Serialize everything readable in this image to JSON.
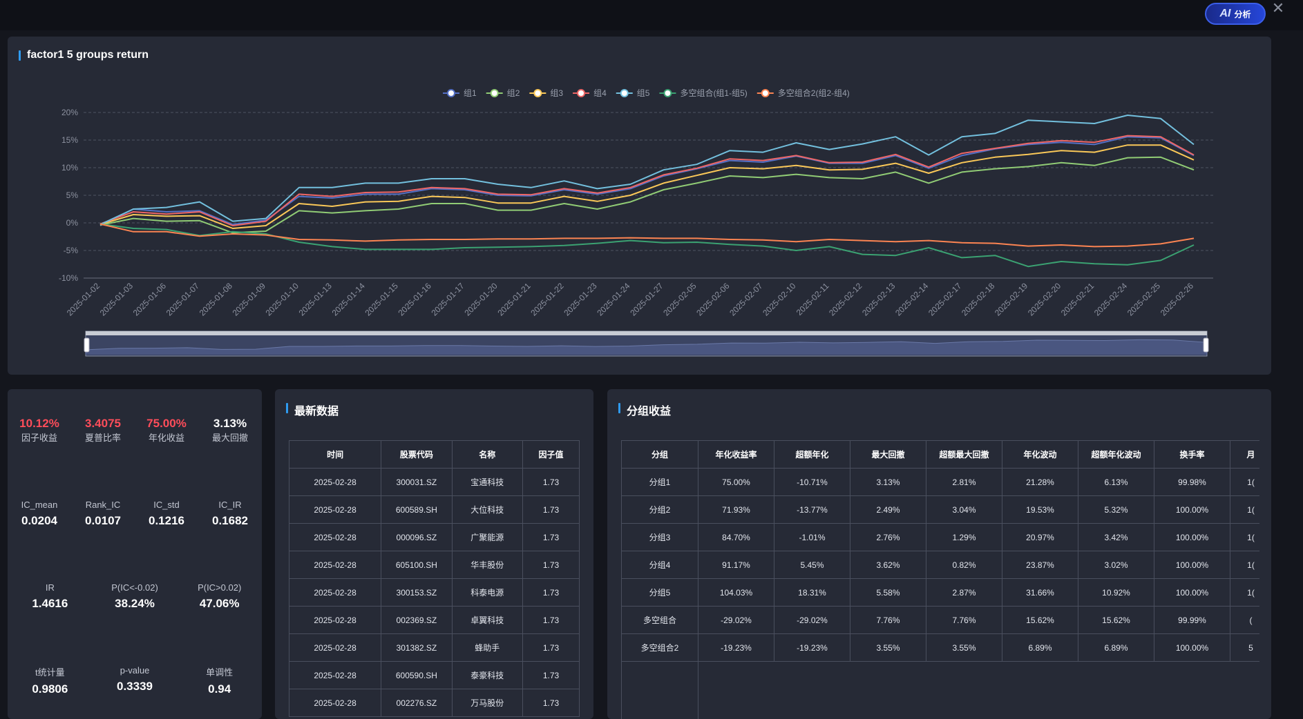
{
  "header": {
    "ai_label": "AI",
    "ai_sub": "分析",
    "close_glyph": "✕"
  },
  "chart": {
    "title": "factor1 5 groups return"
  },
  "chart_data": {
    "type": "line",
    "x": [
      "2025-01-02",
      "2025-01-03",
      "2025-01-06",
      "2025-01-07",
      "2025-01-08",
      "2025-01-09",
      "2025-01-10",
      "2025-01-13",
      "2025-01-14",
      "2025-01-15",
      "2025-01-16",
      "2025-01-17",
      "2025-01-20",
      "2025-01-21",
      "2025-01-22",
      "2025-01-23",
      "2025-01-24",
      "2025-01-27",
      "2025-02-05",
      "2025-02-06",
      "2025-02-07",
      "2025-02-10",
      "2025-02-11",
      "2025-02-12",
      "2025-02-13",
      "2025-02-14",
      "2025-02-17",
      "2025-02-18",
      "2025-02-19",
      "2025-02-20",
      "2025-02-21",
      "2025-02-24",
      "2025-02-25",
      "2025-02-26"
    ],
    "ylim": [
      -10,
      20
    ],
    "yticks": [
      "-10%",
      "-5%",
      "0%",
      "5%",
      "10%",
      "15%",
      "20%"
    ],
    "grid": true,
    "legend_position": "top",
    "series": [
      {
        "name": "组1",
        "color": "#5470c6",
        "values": [
          -0.5,
          2.5,
          2.0,
          2.2,
          -0.3,
          0.5,
          4.8,
          4.5,
          5.2,
          5.2,
          6.2,
          6.0,
          5.0,
          4.9,
          6.0,
          5.2,
          6.2,
          8.5,
          9.8,
          11.3,
          11.0,
          12.1,
          10.8,
          10.8,
          12.2,
          9.9,
          12.2,
          13.4,
          14.2,
          14.6,
          14.2,
          15.6,
          15.4,
          12.2
        ]
      },
      {
        "name": "组2",
        "color": "#91cc75",
        "values": [
          -0.4,
          0.8,
          0.3,
          0.4,
          -1.8,
          -1.5,
          2.2,
          1.8,
          2.2,
          2.5,
          3.5,
          3.5,
          2.3,
          2.3,
          3.5,
          2.5,
          3.8,
          6.0,
          7.2,
          8.5,
          8.2,
          8.8,
          8.2,
          8.0,
          9.2,
          7.2,
          9.2,
          9.8,
          10.2,
          10.9,
          10.4,
          11.8,
          11.9,
          9.6
        ]
      },
      {
        "name": "组3",
        "color": "#fac858",
        "values": [
          -0.3,
          1.5,
          1.2,
          1.3,
          -1.0,
          -0.5,
          3.5,
          3.0,
          3.8,
          3.9,
          4.8,
          4.6,
          3.6,
          3.6,
          4.8,
          3.9,
          5.0,
          7.2,
          8.6,
          10.0,
          9.8,
          10.4,
          9.6,
          9.7,
          10.8,
          9.0,
          10.9,
          11.9,
          12.4,
          13.1,
          12.8,
          14.1,
          14.1,
          11.4
        ]
      },
      {
        "name": "组4",
        "color": "#ee6666",
        "values": [
          -0.2,
          2.0,
          1.6,
          2.0,
          -0.5,
          0.3,
          5.2,
          4.8,
          5.5,
          5.6,
          6.4,
          6.2,
          5.2,
          5.1,
          6.2,
          5.4,
          6.4,
          8.7,
          9.9,
          11.6,
          11.3,
          12.2,
          10.9,
          11.0,
          12.4,
          10.1,
          12.6,
          13.5,
          14.4,
          14.9,
          14.6,
          15.8,
          15.6,
          12.3
        ]
      },
      {
        "name": "组5",
        "color": "#73c0de",
        "values": [
          -0.3,
          2.5,
          2.8,
          3.8,
          0.3,
          0.8,
          6.4,
          6.4,
          7.2,
          7.2,
          8.0,
          8.0,
          7.0,
          6.4,
          7.6,
          6.2,
          7.0,
          9.6,
          10.6,
          13.1,
          12.8,
          14.5,
          13.3,
          14.3,
          15.6,
          12.3,
          15.6,
          16.2,
          18.6,
          18.3,
          18.0,
          19.5,
          18.9,
          14.2
        ]
      },
      {
        "name": "多空组合(组1-组5)",
        "color": "#3ba272",
        "values": [
          -0.2,
          -1.0,
          -1.2,
          -2.3,
          -1.6,
          -2.0,
          -3.5,
          -4.3,
          -4.8,
          -4.8,
          -4.8,
          -4.5,
          -4.4,
          -4.3,
          -4.1,
          -3.7,
          -3.2,
          -3.6,
          -3.5,
          -3.9,
          -4.2,
          -5.0,
          -4.3,
          -5.7,
          -5.9,
          -4.5,
          -6.3,
          -5.9,
          -7.9,
          -7.0,
          -7.4,
          -7.6,
          -6.8,
          -4.0
        ]
      },
      {
        "name": "多空组合2(组2-组4)",
        "color": "#fc8452",
        "values": [
          -0.2,
          -1.6,
          -1.6,
          -2.4,
          -2.0,
          -2.2,
          -3.0,
          -3.1,
          -3.3,
          -3.1,
          -3.0,
          -3.0,
          -2.9,
          -2.9,
          -2.8,
          -2.8,
          -2.7,
          -2.8,
          -2.8,
          -3.0,
          -3.1,
          -3.4,
          -3.0,
          -3.2,
          -3.4,
          -3.2,
          -3.6,
          -3.7,
          -4.2,
          -4.0,
          -4.3,
          -4.2,
          -3.8,
          -2.8
        ]
      }
    ]
  },
  "stats": {
    "row1": [
      {
        "value": "10.12%",
        "label": "因子收益",
        "highlight": true
      },
      {
        "value": "3.4075",
        "label": "夏普比率",
        "highlight": true
      },
      {
        "value": "75.00%",
        "label": "年化收益",
        "highlight": true
      },
      {
        "value": "3.13%",
        "label": "最大回撤",
        "highlight": false
      }
    ],
    "row2": [
      {
        "value": "0.0204",
        "label": "IC_mean"
      },
      {
        "value": "0.0107",
        "label": "Rank_IC"
      },
      {
        "value": "0.1216",
        "label": "IC_std"
      },
      {
        "value": "0.1682",
        "label": "IC_IR"
      }
    ],
    "row3": [
      {
        "value": "1.4616",
        "label": "IR"
      },
      {
        "value": "38.24%",
        "label": "P(IC<-0.02)"
      },
      {
        "value": "47.06%",
        "label": "P(IC>0.02)"
      }
    ],
    "row4": [
      {
        "value": "0.9806",
        "label": "t统计量"
      },
      {
        "value": "0.3339",
        "label": "p-value"
      },
      {
        "value": "0.94",
        "label": "单调性"
      }
    ]
  },
  "latest": {
    "title": "最新数据",
    "headers": [
      "时间",
      "股票代码",
      "名称",
      "因子值"
    ],
    "rows": [
      [
        "2025-02-28",
        "300031.SZ",
        "宝通科技",
        "1.73"
      ],
      [
        "2025-02-28",
        "600589.SH",
        "大位科技",
        "1.73"
      ],
      [
        "2025-02-28",
        "000096.SZ",
        "广聚能源",
        "1.73"
      ],
      [
        "2025-02-28",
        "605100.SH",
        "华丰股份",
        "1.73"
      ],
      [
        "2025-02-28",
        "300153.SZ",
        "科泰电源",
        "1.73"
      ],
      [
        "2025-02-28",
        "002369.SZ",
        "卓翼科技",
        "1.73"
      ],
      [
        "2025-02-28",
        "301382.SZ",
        "蜂助手",
        "1.73"
      ],
      [
        "2025-02-28",
        "600590.SH",
        "泰豪科技",
        "1.73"
      ],
      [
        "2025-02-28",
        "002276.SZ",
        "万马股份",
        "1.73"
      ]
    ]
  },
  "groups": {
    "title": "分组收益",
    "headers": [
      "分组",
      "年化收益率",
      "超额年化",
      "最大回撤",
      "超额最大回撤",
      "年化波动",
      "超额年化波动",
      "换手率",
      "月"
    ],
    "rows": [
      [
        "分组1",
        "75.00%",
        "-10.71%",
        "3.13%",
        "2.81%",
        "21.28%",
        "6.13%",
        "99.98%",
        "1("
      ],
      [
        "分组2",
        "71.93%",
        "-13.77%",
        "2.49%",
        "3.04%",
        "19.53%",
        "5.32%",
        "100.00%",
        "1("
      ],
      [
        "分组3",
        "84.70%",
        "-1.01%",
        "2.76%",
        "1.29%",
        "20.97%",
        "3.42%",
        "100.00%",
        "1("
      ],
      [
        "分组4",
        "91.17%",
        "5.45%",
        "3.62%",
        "0.82%",
        "23.87%",
        "3.02%",
        "100.00%",
        "1("
      ],
      [
        "分组5",
        "104.03%",
        "18.31%",
        "5.58%",
        "2.87%",
        "31.66%",
        "10.92%",
        "100.00%",
        "1("
      ],
      [
        "多空组合",
        "-29.02%",
        "-29.02%",
        "7.76%",
        "7.76%",
        "15.62%",
        "15.62%",
        "99.99%",
        "("
      ],
      [
        "多空组合2",
        "-19.23%",
        "-19.23%",
        "3.55%",
        "3.55%",
        "6.89%",
        "6.89%",
        "100.00%",
        "5"
      ]
    ]
  }
}
